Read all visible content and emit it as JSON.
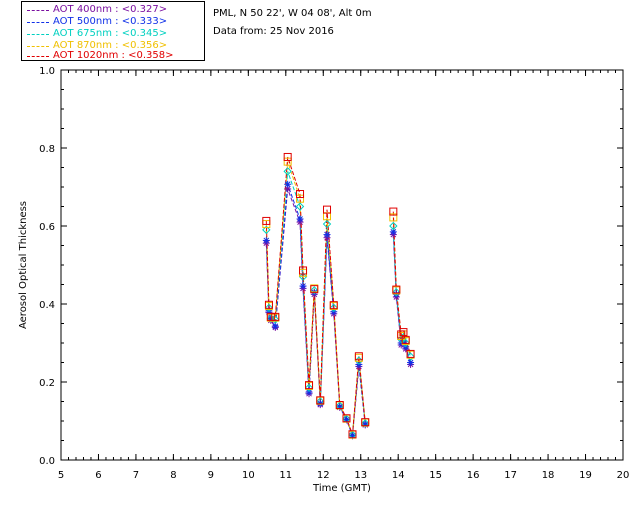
{
  "chart_data": {
    "type": "line",
    "header_lines": [
      "PML, N 50 22', W 04 08', Alt 0m",
      "Data from: 25 Nov 2016"
    ],
    "xlabel": "Time (GMT)",
    "ylabel": "Aerosol Optical Thickness",
    "xlim": [
      5,
      20
    ],
    "ylim": [
      0,
      1
    ],
    "xticks": [
      "5",
      "6",
      "7",
      "8",
      "9",
      "10",
      "11",
      "12",
      "13",
      "14",
      "15",
      "16",
      "17",
      "18",
      "19",
      "20"
    ],
    "yticks": [
      "0.0",
      "0.2",
      "0.4",
      "0.6",
      "0.8",
      "1.0"
    ],
    "legend_position": "top-left",
    "x": [
      10.48,
      10.55,
      10.6,
      10.72,
      11.05,
      11.38,
      11.46,
      11.62,
      11.76,
      11.92,
      12.1,
      12.28,
      12.44,
      12.62,
      12.78,
      12.95,
      13.12,
      13.87,
      13.95,
      14.08,
      14.14,
      14.2,
      14.33
    ],
    "series": [
      {
        "name": "AOT 400nm",
        "legend_text": "AOT  400nm : <0.327>",
        "color": "#7a0fa0",
        "marker": "star",
        "values": [
          0.556,
          0.378,
          0.358,
          0.34,
          0.695,
          0.61,
          0.44,
          0.17,
          0.425,
          0.142,
          0.57,
          0.375,
          0.135,
          0.103,
          0.062,
          0.24,
          0.09,
          0.578,
          0.418,
          0.295,
          0.302,
          0.285,
          0.245
        ]
      },
      {
        "name": "AOT 500nm",
        "legend_text": "AOT  500nm : <0.333>",
        "color": "#1030e8",
        "marker": "star",
        "values": [
          0.563,
          0.382,
          0.362,
          0.343,
          0.707,
          0.618,
          0.446,
          0.174,
          0.43,
          0.145,
          0.578,
          0.38,
          0.137,
          0.104,
          0.063,
          0.245,
          0.092,
          0.585,
          0.425,
          0.3,
          0.305,
          0.29,
          0.25
        ]
      },
      {
        "name": "AOT 675nm",
        "legend_text": "AOT  675nm : <0.345>",
        "color": "#00d0c0",
        "marker": "diamond",
        "values": [
          0.59,
          0.39,
          0.363,
          0.36,
          0.74,
          0.65,
          0.47,
          0.185,
          0.435,
          0.15,
          0.605,
          0.39,
          0.139,
          0.105,
          0.064,
          0.255,
          0.094,
          0.6,
          0.43,
          0.31,
          0.315,
          0.3,
          0.265
        ]
      },
      {
        "name": "AOT 870nm",
        "legend_text": "AOT  870nm : <0.356>",
        "color": "#f0c000",
        "marker": "square",
        "values": [
          0.605,
          0.395,
          0.365,
          0.365,
          0.765,
          0.67,
          0.48,
          0.19,
          0.44,
          0.152,
          0.625,
          0.395,
          0.14,
          0.106,
          0.065,
          0.262,
          0.096,
          0.622,
          0.435,
          0.318,
          0.322,
          0.305,
          0.27
        ]
      },
      {
        "name": "AOT 1020nm",
        "legend_text": "AOT 1020nm : <0.358>",
        "color": "#e00000",
        "marker": "square",
        "values": [
          0.613,
          0.398,
          0.367,
          0.367,
          0.777,
          0.682,
          0.486,
          0.192,
          0.438,
          0.153,
          0.642,
          0.397,
          0.141,
          0.107,
          0.066,
          0.266,
          0.097,
          0.637,
          0.437,
          0.322,
          0.328,
          0.308,
          0.272
        ]
      }
    ]
  }
}
